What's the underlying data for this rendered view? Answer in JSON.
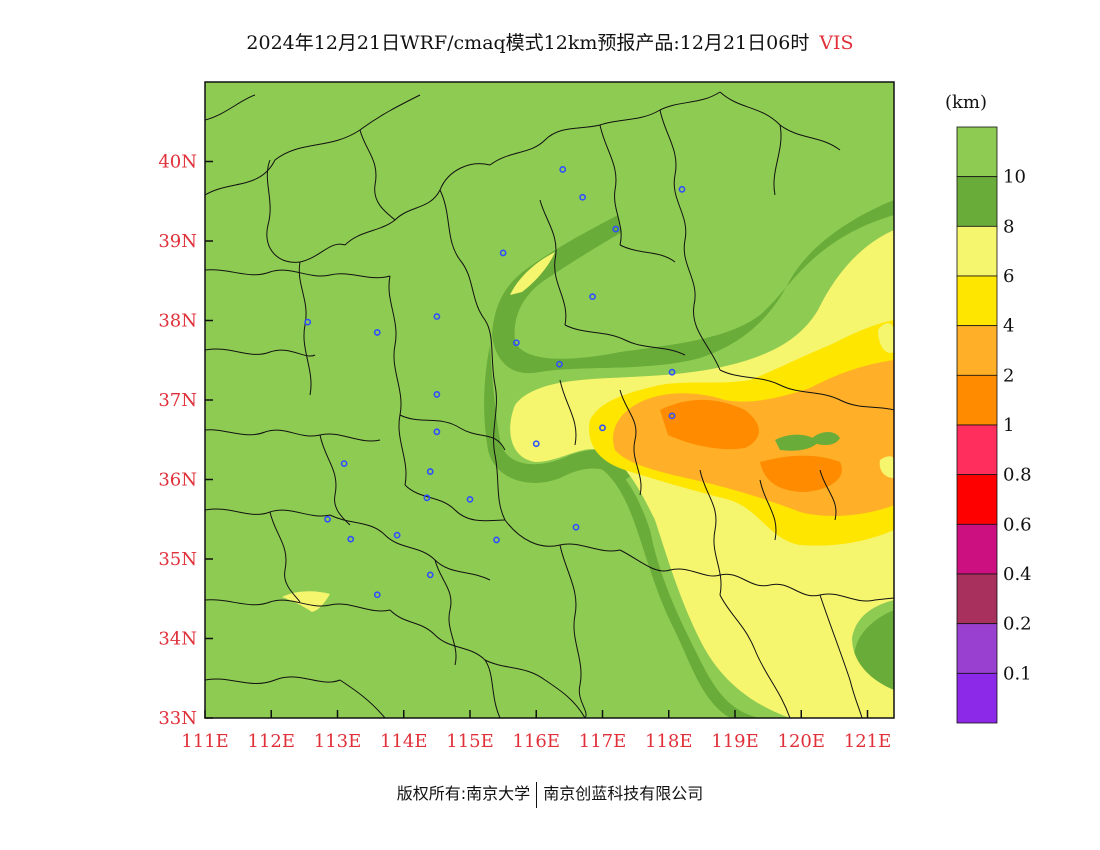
{
  "header": {
    "title": "2024年12月21日WRF/cmaq模式12km预报产品:12月21日06时",
    "variable": "VIS"
  },
  "map": {
    "lon_range": [
      111.0,
      121.4
    ],
    "lat_range": [
      33.0,
      41.0
    ],
    "x_ticks": [
      "111E",
      "112E",
      "113E",
      "114E",
      "115E",
      "116E",
      "117E",
      "118E",
      "119E",
      "120E",
      "121E"
    ],
    "y_ticks": [
      "33N",
      "34N",
      "35N",
      "36N",
      "37N",
      "38N",
      "39N",
      "40N"
    ],
    "background_color": "#8ecb52",
    "city_marker_color": "#3050ff",
    "city_markers": [
      [
        116.4,
        39.9
      ],
      [
        116.7,
        39.55
      ],
      [
        118.2,
        39.65
      ],
      [
        117.2,
        39.15
      ],
      [
        115.5,
        38.85
      ],
      [
        116.85,
        38.3
      ],
      [
        114.5,
        38.05
      ],
      [
        112.55,
        37.98
      ],
      [
        113.6,
        37.85
      ],
      [
        115.7,
        37.72
      ],
      [
        116.35,
        37.45
      ],
      [
        118.05,
        37.35
      ],
      [
        114.5,
        37.07
      ],
      [
        118.05,
        36.8
      ],
      [
        114.5,
        36.6
      ],
      [
        117.0,
        36.65
      ],
      [
        116.0,
        36.45
      ],
      [
        113.1,
        36.2
      ],
      [
        114.4,
        36.1
      ],
      [
        115.0,
        35.75
      ],
      [
        114.35,
        35.77
      ],
      [
        112.85,
        35.5
      ],
      [
        113.9,
        35.3
      ],
      [
        113.2,
        35.25
      ],
      [
        115.4,
        35.24
      ],
      [
        116.6,
        35.4
      ],
      [
        114.4,
        34.8
      ],
      [
        113.6,
        34.55
      ]
    ]
  },
  "colorbar": {
    "unit": "(km)",
    "colors": [
      "#8ecb52",
      "#6aac3a",
      "#f5f56e",
      "#ffe600",
      "#ffb028",
      "#ff8c00",
      "#ff2e5c",
      "#ff0000",
      "#cc1080",
      "#a8305c",
      "#9a40d0",
      "#8c28e8"
    ],
    "labels": [
      "10",
      "8",
      "6",
      "4",
      "2",
      "1",
      "0.8",
      "0.6",
      "0.4",
      "0.2",
      "0.1"
    ]
  },
  "footer": {
    "left": "版权所有:南京大学",
    "right": "南京创蓝科技有限公司"
  }
}
